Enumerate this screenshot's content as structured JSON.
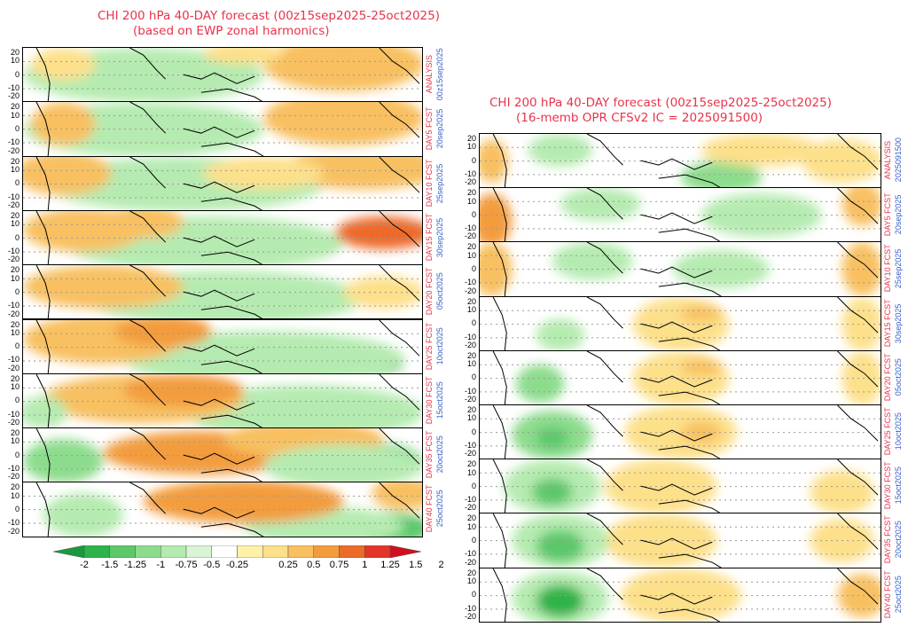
{
  "left": {
    "title": "CHI 200 hPa 40-DAY forecast (00z15sep2025-25oct2025)",
    "subtitle": "(based on EWP zonal harmonics)",
    "panels": [
      [
        "ANALYSIS",
        "00z15sep2025"
      ],
      [
        "DAY5 FCST",
        "20sep2025"
      ],
      [
        "DAY10 FCST",
        "25sep2025"
      ],
      [
        "DAY15 FCST",
        "30sep2025"
      ],
      [
        "DAY20 FCST",
        "05oct2025"
      ],
      [
        "DAY25 FCST",
        "10oct2025"
      ],
      [
        "DAY30 FCST",
        "15oct2025"
      ],
      [
        "DAY35 FCST",
        "20oct2025"
      ],
      [
        "DAY40 FCST",
        "25oct2025"
      ]
    ]
  },
  "right": {
    "title": "CHI 200 hPa 40-DAY forecast (00z15sep2025-25oct2025)",
    "subtitle": "(16-memb OPR CFSv2 IC = 2025091500)",
    "panels": [
      [
        "ANALYSIS",
        "2025091500"
      ],
      [
        "DAY5 FCST",
        "20sep2025"
      ],
      [
        "DAY10 FCST",
        "25sep2025"
      ],
      [
        "DAY15 FCST",
        "30sep2025"
      ],
      [
        "DAY20 FCST",
        "05oct2025"
      ],
      [
        "DAY25 FCST",
        "10oct2025"
      ],
      [
        "DAY30 FCST",
        "15oct2025"
      ],
      [
        "DAY35 FCST",
        "20oct2025"
      ],
      [
        "DAY40 FCST",
        "25oct2025"
      ]
    ]
  },
  "chart_data": {
    "type": "heatmap",
    "y_ticks": [
      "20",
      "10",
      "0",
      "-10",
      "-20"
    ],
    "ylim": [
      -20,
      20
    ],
    "colorbar": {
      "labels": [
        "-2",
        "-1.5",
        "-1.25",
        "-1",
        "-0.75",
        "-0.5",
        "-0.25",
        "0.25",
        "0.5",
        "0.75",
        "1",
        "1.25",
        "1.5",
        "2"
      ],
      "colors": [
        "#1a9a3c",
        "#2db34a",
        "#5cc86a",
        "#8ddc8d",
        "#b5ebb0",
        "#d9f5d4",
        "#ffffff",
        "#fff2a8",
        "#fde08a",
        "#f8c060",
        "#f39c3c",
        "#ec6a2a",
        "#e3352a",
        "#d01020"
      ]
    }
  }
}
